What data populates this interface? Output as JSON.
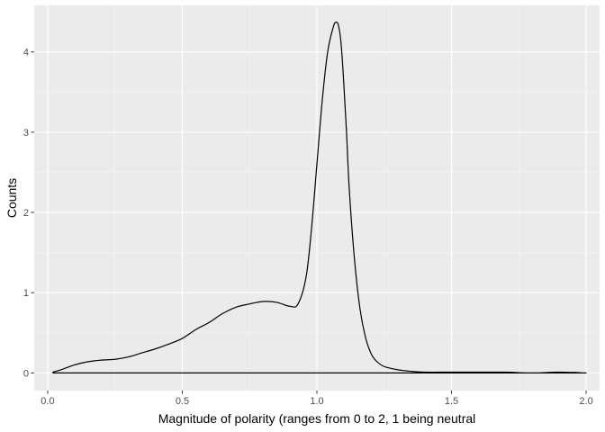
{
  "chart_data": {
    "type": "line",
    "chart_kind": "density",
    "xlabel": "Magnitude of polarity (ranges from 0 to 2, 1 being neutral",
    "ylabel": "Counts",
    "xlim": [
      -0.05,
      2.05
    ],
    "ylim": [
      -0.22,
      4.58
    ],
    "x_ticks": [
      0.0,
      0.5,
      1.0,
      1.5,
      2.0
    ],
    "x_tick_labels": [
      "0.0",
      "0.5",
      "1.0",
      "1.5",
      "2.0"
    ],
    "y_ticks": [
      0,
      1,
      2,
      3,
      4
    ],
    "y_tick_labels": [
      "0",
      "1",
      "2",
      "3",
      "4"
    ],
    "x_minor_ticks": [
      0.25,
      0.75,
      1.25,
      1.75
    ],
    "y_minor_ticks": [
      0.5,
      1.5,
      2.5,
      3.5
    ],
    "grid": true,
    "legend": "none",
    "colors": {
      "panel_background": "#ebebeb",
      "grid_major": "#ffffff",
      "grid_minor": "#f5f5f5",
      "line": "#000000",
      "tick_mark": "#333333"
    },
    "series": [
      {
        "x": [
          0.02,
          0.05,
          0.1,
          0.15,
          0.2,
          0.25,
          0.3,
          0.35,
          0.4,
          0.45,
          0.5,
          0.55,
          0.6,
          0.65,
          0.7,
          0.75,
          0.8,
          0.85,
          0.9,
          0.93,
          0.96,
          0.98,
          1.0,
          1.02,
          1.04,
          1.06,
          1.07,
          1.08,
          1.09,
          1.1,
          1.11,
          1.12,
          1.14,
          1.16,
          1.18,
          1.2,
          1.22,
          1.25,
          1.3,
          1.35,
          1.4,
          1.5,
          1.6,
          1.7,
          1.8,
          1.9,
          2.0
        ],
        "y": [
          0.01,
          0.04,
          0.1,
          0.14,
          0.16,
          0.17,
          0.2,
          0.25,
          0.3,
          0.36,
          0.43,
          0.54,
          0.63,
          0.74,
          0.82,
          0.86,
          0.89,
          0.88,
          0.83,
          0.86,
          1.2,
          1.8,
          2.6,
          3.4,
          4.0,
          4.3,
          4.37,
          4.33,
          4.1,
          3.6,
          3.0,
          2.3,
          1.4,
          0.8,
          0.45,
          0.25,
          0.15,
          0.08,
          0.04,
          0.02,
          0.01,
          0.01,
          0.01,
          0.01,
          0.0,
          0.01,
          0.0
        ],
        "closing_baseline": true
      }
    ]
  }
}
